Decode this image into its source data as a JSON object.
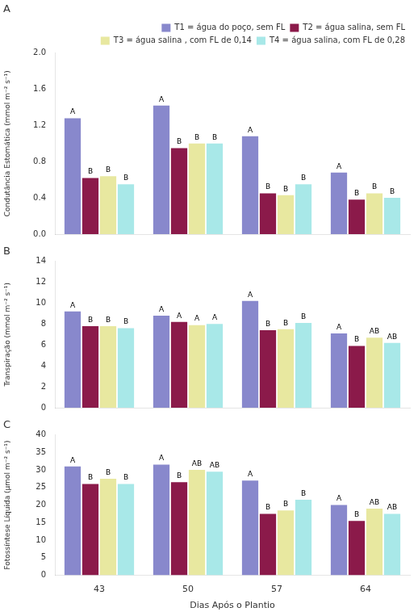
{
  "chart_data": [
    {
      "type": "bar",
      "title": "A",
      "ylabel": "Condutância Estomática (mmol m⁻² s⁻¹)",
      "categories": [
        "43",
        "50",
        "57",
        "64"
      ],
      "series": [
        {
          "name": "T1 = água do poço, sem FL",
          "color": "#8888cc",
          "values": [
            1.28,
            1.42,
            1.08,
            0.68
          ],
          "annotations": [
            "A",
            "A",
            "A",
            "A"
          ]
        },
        {
          "name": "T2 = água salina, sem FL",
          "color": "#8b1a4a",
          "values": [
            0.62,
            0.95,
            0.45,
            0.38
          ],
          "annotations": [
            "B",
            "B",
            "B",
            "B"
          ]
        },
        {
          "name": "T3 = água salina , com FL de 0,14",
          "color": "#e8e8a0",
          "values": [
            0.64,
            1.0,
            0.43,
            0.45
          ],
          "annotations": [
            "B",
            "B",
            "B",
            "B"
          ]
        },
        {
          "name": "T4 = água salina, com FL de 0,28",
          "color": "#a8e8e8",
          "values": [
            0.55,
            1.0,
            0.55,
            0.4
          ],
          "annotations": [
            "B",
            "B",
            "B",
            "B"
          ]
        }
      ],
      "ylim": [
        0.0,
        2.0
      ],
      "yticks": [
        {
          "value": 0,
          "label": "0.0"
        },
        0.4,
        0.8,
        1.2,
        1.6,
        {
          "value": 2,
          "label": "2.0"
        }
      ],
      "grid": false,
      "legend": "upper right",
      "tick_labels": "y"
    },
    {
      "type": "bar",
      "title": "B",
      "ylabel": "Transpiração (mmol m⁻² s⁻¹)",
      "categories": [
        "43",
        "50",
        "57",
        "64"
      ],
      "series": [
        {
          "color": "#8888cc",
          "values": [
            9.2,
            8.8,
            10.2,
            7.1
          ],
          "annotations": [
            "A",
            "A",
            "A",
            "A"
          ]
        },
        {
          "color": "#8b1a4a",
          "values": [
            7.8,
            8.2,
            7.4,
            5.9
          ],
          "annotations": [
            "B",
            "A",
            "B",
            "B"
          ]
        },
        {
          "color": "#e8e8a0",
          "values": [
            7.8,
            7.9,
            7.5,
            6.7
          ],
          "annotations": [
            "B",
            "A",
            "B",
            "AB"
          ]
        },
        {
          "color": "#a8e8e8",
          "values": [
            7.6,
            8.0,
            8.1,
            6.2
          ],
          "annotations": [
            "B",
            "A",
            "B",
            "AB"
          ]
        }
      ],
      "ylim": [
        0,
        14
      ],
      "yticks": [
        0,
        2,
        4,
        6,
        8,
        10,
        12,
        14
      ],
      "grid": false,
      "tick_labels": "y"
    },
    {
      "type": "bar",
      "title": "C",
      "xlabel": "Dias Após o Plantio",
      "ylabel": "Fotossíntese Líquida (μmol m⁻² s⁻¹)",
      "categories": [
        "43",
        "50",
        "57",
        "64"
      ],
      "series": [
        {
          "color": "#8888cc",
          "values": [
            31.0,
            31.5,
            27.0,
            20.0
          ],
          "annotations": [
            "A",
            "A",
            "A",
            "A"
          ]
        },
        {
          "color": "#8b1a4a",
          "values": [
            26.0,
            26.5,
            17.5,
            15.5
          ],
          "annotations": [
            "B",
            "B",
            "B",
            "B"
          ]
        },
        {
          "color": "#e8e8a0",
          "values": [
            27.5,
            30.0,
            18.5,
            19.0
          ],
          "annotations": [
            "B",
            "AB",
            "B",
            "AB"
          ]
        },
        {
          "color": "#a8e8e8",
          "values": [
            26.0,
            29.5,
            21.5,
            17.5
          ],
          "annotations": [
            "B",
            "AB",
            "B",
            "AB"
          ]
        }
      ],
      "ylim": [
        0,
        40
      ],
      "yticks": [
        0,
        5,
        10,
        15,
        20,
        25,
        30,
        35,
        40
      ],
      "grid": false
    }
  ]
}
